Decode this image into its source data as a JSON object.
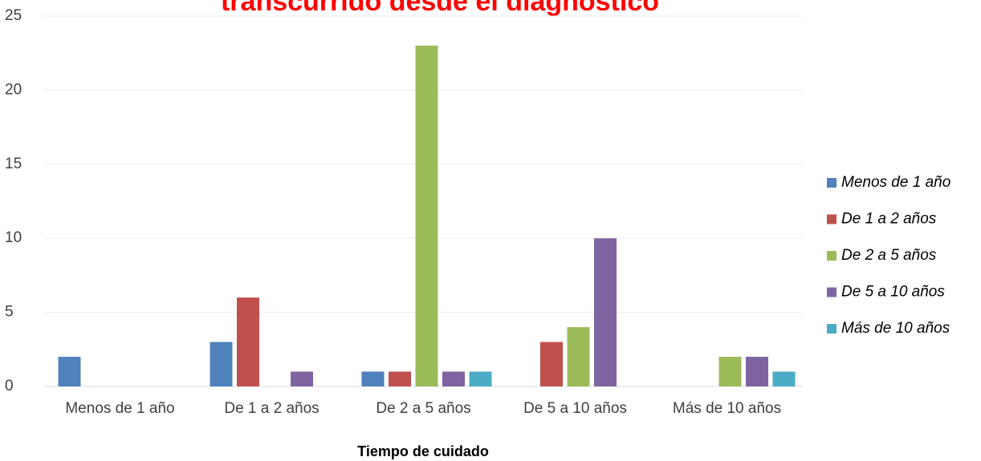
{
  "chart_data": {
    "type": "bar",
    "title": "transcurrido desde el diagnóstico",
    "x_label": "Tiempo de cuidado",
    "categories": [
      "Menos de 1 año",
      "De 1 a 2 años",
      "De 2 a 5 años",
      "De 5 a 10 años",
      "Más de 10 años"
    ],
    "series": [
      {
        "name": "Menos de 1 año",
        "color": "#4f81bd",
        "values": [
          2,
          3,
          1,
          0,
          0
        ]
      },
      {
        "name": "De 1 a 2 años",
        "color": "#c0504d",
        "values": [
          0,
          6,
          1,
          3,
          0
        ]
      },
      {
        "name": "De 2 a 5 años",
        "color": "#9bbb59",
        "values": [
          0,
          0,
          23,
          4,
          2
        ]
      },
      {
        "name": "De 5 a 10 años",
        "color": "#8064a2",
        "values": [
          0,
          1,
          1,
          10,
          2
        ]
      },
      {
        "name": "Más de 10 años",
        "color": "#4bacc6",
        "values": [
          0,
          0,
          1,
          0,
          1
        ]
      }
    ],
    "ylim": [
      0,
      25
    ],
    "yticks": [
      0,
      5,
      10,
      15,
      20,
      25
    ],
    "grid": true,
    "legend": "right"
  }
}
